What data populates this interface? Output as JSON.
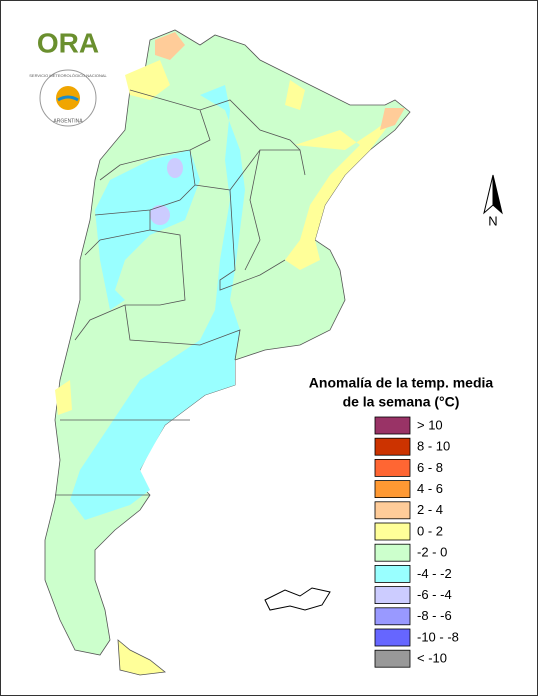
{
  "logo": {
    "name": "ORA",
    "seal_top": "SERVICIO METEOROLÓGICO NACIONAL",
    "seal_bottom": "ARGENTINA"
  },
  "north_label": "N",
  "legend": {
    "title_line1": "Anomalía de la temp. media",
    "title_line2": "de la semana (°C)",
    "items": [
      {
        "label": "> 10",
        "color": "#993366"
      },
      {
        "label": "8 - 10",
        "color": "#cc3300"
      },
      {
        "label": "6 - 8",
        "color": "#ff6633"
      },
      {
        "label": "4 - 6",
        "color": "#ff9933"
      },
      {
        "label": "2 - 4",
        "color": "#ffcc99"
      },
      {
        "label": "0 - 2",
        "color": "#ffff99"
      },
      {
        "label": "-2 - 0",
        "color": "#ccffcc"
      },
      {
        "label": "-4 - -2",
        "color": "#99ffff"
      },
      {
        "label": "-6 - -4",
        "color": "#ccccff"
      },
      {
        "label": "-8 - -6",
        "color": "#9999ff"
      },
      {
        "label": "-10 - -8",
        "color": "#6666ff"
      },
      {
        "label": "< -10",
        "color": "#999999"
      }
    ]
  }
}
